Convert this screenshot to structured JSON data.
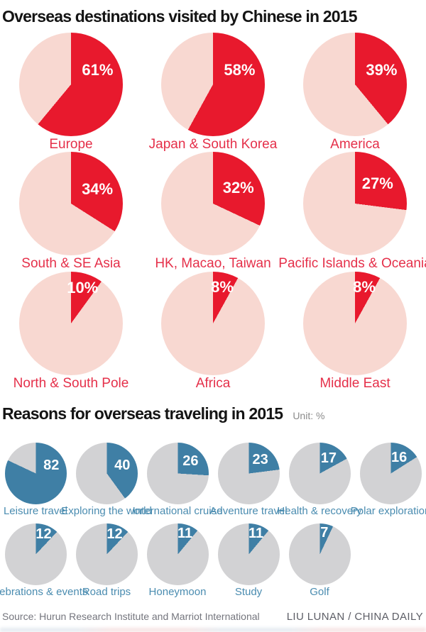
{
  "page": {
    "background": "#ffffff"
  },
  "chart_data": [
    {
      "type": "pie",
      "variant": "pie-grid",
      "title": "Overseas destinations visited by Chinese in 2015",
      "unit": "%",
      "slice_color": "#e8192d",
      "remainder_color": "#f8d8d1",
      "label_color": "#e5304a",
      "value_text_color": "#ffffff",
      "legend_position": "none",
      "items": [
        {
          "category": "Europe",
          "value": 61,
          "value_label": "61%"
        },
        {
          "category": "Japan & South Korea",
          "value": 58,
          "value_label": "58%"
        },
        {
          "category": "America",
          "value": 39,
          "value_label": "39%"
        },
        {
          "category": "South & SE Asia",
          "value": 34,
          "value_label": "34%"
        },
        {
          "category": "HK, Macao, Taiwan",
          "value": 32,
          "value_label": "32%"
        },
        {
          "category": "Pacific Islands & Oceania",
          "value": 27,
          "value_label": "27%"
        },
        {
          "category": "North & South Pole",
          "value": 10,
          "value_label": "10%"
        },
        {
          "category": "Africa",
          "value": 8,
          "value_label": "8%"
        },
        {
          "category": "Middle East",
          "value": 8,
          "value_label": "8%"
        }
      ]
    },
    {
      "type": "pie",
      "variant": "pie-grid",
      "title": "Reasons for overseas traveling in 2015",
      "unit_label": "Unit: %",
      "slice_color": "#3f7fa5",
      "remainder_color": "#d2d2d4",
      "label_color": "#4a8cb0",
      "value_text_color": "#ffffff",
      "legend_position": "none",
      "items": [
        {
          "category": "Leisure travel",
          "value": 82,
          "value_label": "82"
        },
        {
          "category": "Exploring the world",
          "value": 40,
          "value_label": "40"
        },
        {
          "category": "International cruise",
          "value": 26,
          "value_label": "26"
        },
        {
          "category": "Adventure travel",
          "value": 23,
          "value_label": "23"
        },
        {
          "category": "Health & recovery",
          "value": 17,
          "value_label": "17"
        },
        {
          "category": "Polar exploration",
          "value": 16,
          "value_label": "16"
        },
        {
          "category": "Celebrations & events",
          "value": 12,
          "value_label": "12"
        },
        {
          "category": "Road trips",
          "value": 12,
          "value_label": "12"
        },
        {
          "category": "Honeymoon",
          "value": 11,
          "value_label": "11"
        },
        {
          "category": "Study",
          "value": 11,
          "value_label": "11"
        },
        {
          "category": "Golf",
          "value": 7,
          "value_label": "7"
        }
      ]
    }
  ],
  "footer": {
    "source": "Source: Hurun Research Institute and Marriot International",
    "credit": "LIU LUNAN / CHINA DAILY"
  }
}
